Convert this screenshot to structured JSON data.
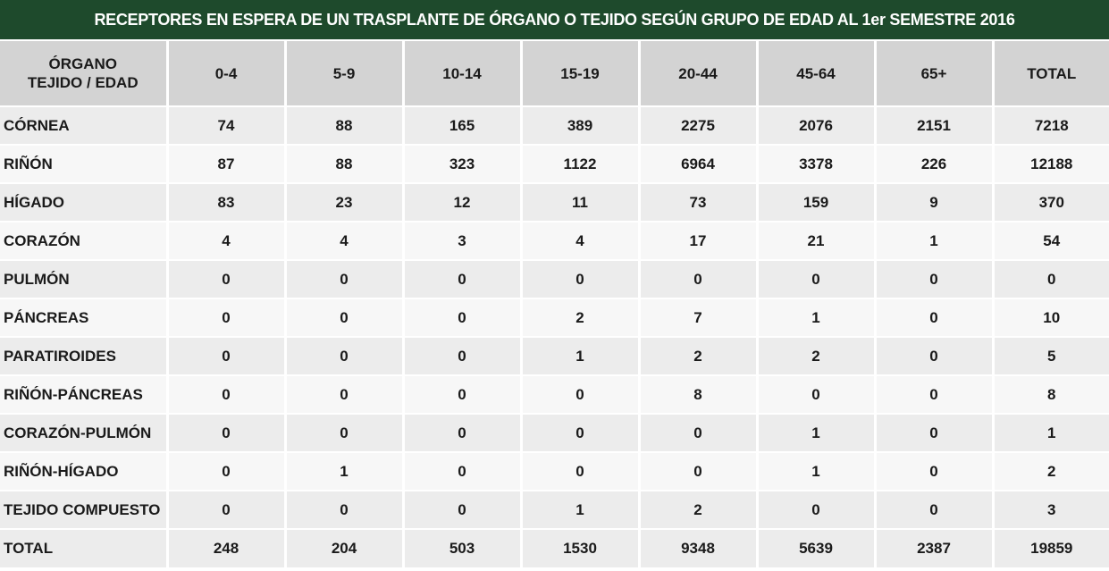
{
  "chart_data": {
    "type": "table",
    "title": "RECEPTORES EN ESPERA DE UN TRASPLANTE DE ÓRGANO O TEJIDO SEGÚN GRUPO DE EDAD AL 1er SEMESTRE 2016",
    "row_header_line1": "ÓRGANO",
    "row_header_line2": "TEJIDO / EDAD",
    "columns": [
      "0-4",
      "5-9",
      "10-14",
      "15-19",
      "20-44",
      "45-64",
      "65+",
      "TOTAL"
    ],
    "rows": [
      {
        "label": "CÓRNEA",
        "values": [
          "74",
          "88",
          "165",
          "389",
          "2275",
          "2076",
          "2151",
          "7218"
        ]
      },
      {
        "label": "RIÑÓN",
        "values": [
          "87",
          "88",
          "323",
          "1122",
          "6964",
          "3378",
          "226",
          "12188"
        ]
      },
      {
        "label": "HÍGADO",
        "values": [
          "83",
          "23",
          "12",
          "11",
          "73",
          "159",
          "9",
          "370"
        ]
      },
      {
        "label": "CORAZÓN",
        "values": [
          "4",
          "4",
          "3",
          "4",
          "17",
          "21",
          "1",
          "54"
        ]
      },
      {
        "label": "PULMÓN",
        "values": [
          "0",
          "0",
          "0",
          "0",
          "0",
          "0",
          "0",
          "0"
        ]
      },
      {
        "label": "PÁNCREAS",
        "values": [
          "0",
          "0",
          "0",
          "2",
          "7",
          "1",
          "0",
          "10"
        ]
      },
      {
        "label": "PARATIROIDES",
        "values": [
          "0",
          "0",
          "0",
          "1",
          "2",
          "2",
          "0",
          "5"
        ]
      },
      {
        "label": "RIÑÓN-PÁNCREAS",
        "values": [
          "0",
          "0",
          "0",
          "0",
          "8",
          "0",
          "0",
          "8"
        ]
      },
      {
        "label": "CORAZÓN-PULMÓN",
        "values": [
          "0",
          "0",
          "0",
          "0",
          "0",
          "1",
          "0",
          "1"
        ]
      },
      {
        "label": "RIÑÓN-HÍGADO",
        "values": [
          "0",
          "1",
          "0",
          "0",
          "0",
          "1",
          "0",
          "2"
        ]
      },
      {
        "label": "TEJIDO COMPUESTO",
        "values": [
          "0",
          "0",
          "0",
          "1",
          "2",
          "0",
          "0",
          "3"
        ]
      },
      {
        "label": "TOTAL",
        "values": [
          "248",
          "204",
          "503",
          "1530",
          "9348",
          "5639",
          "2387",
          "19859"
        ]
      }
    ]
  },
  "colors": {
    "title_bar": "#1e4a2c",
    "header_bg": "#d3d3d3",
    "row_odd": "#ececec",
    "row_even": "#f7f7f7"
  }
}
